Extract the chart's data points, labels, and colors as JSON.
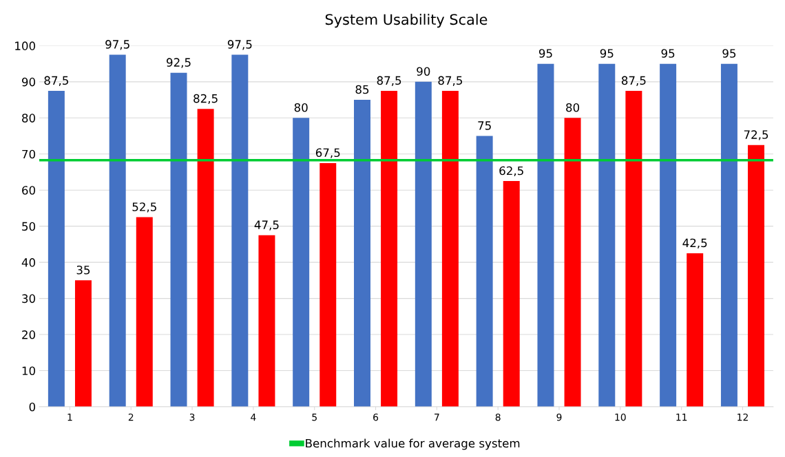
{
  "chart_data": {
    "type": "bar",
    "title": "System Usability Scale",
    "categories": [
      "1",
      "2",
      "3",
      "4",
      "5",
      "6",
      "7",
      "8",
      "9",
      "10",
      "11",
      "12"
    ],
    "series": [
      {
        "color": "#4472c4",
        "values": [
          87.5,
          97.5,
          92.5,
          97.5,
          80,
          85,
          90,
          75,
          95,
          95,
          95,
          95
        ],
        "value_labels": [
          "87,5",
          "97,5",
          "92,5",
          "97,5",
          "80",
          "85",
          "90",
          "75",
          "95",
          "95",
          "95",
          "95"
        ]
      },
      {
        "color": "#ff0000",
        "values": [
          35,
          52.5,
          82.5,
          47.5,
          67.5,
          87.5,
          87.5,
          62.5,
          80,
          87.5,
          42.5,
          72.5
        ],
        "value_labels": [
          "35",
          "52,5",
          "82,5",
          "47,5",
          "67,5",
          "87,5",
          "87,5",
          "62,5",
          "80",
          "87,5",
          "42,5",
          "72,5"
        ]
      }
    ],
    "ylim": [
      0,
      100
    ],
    "yticks": [
      0,
      10,
      20,
      30,
      40,
      50,
      60,
      70,
      80,
      90,
      100
    ],
    "ref_lines": [
      {
        "axis": "y",
        "value": 68.3,
        "label": "Benchmark value for average system",
        "color": "#00cc33"
      }
    ],
    "grid": "y",
    "legend": "bottom"
  }
}
